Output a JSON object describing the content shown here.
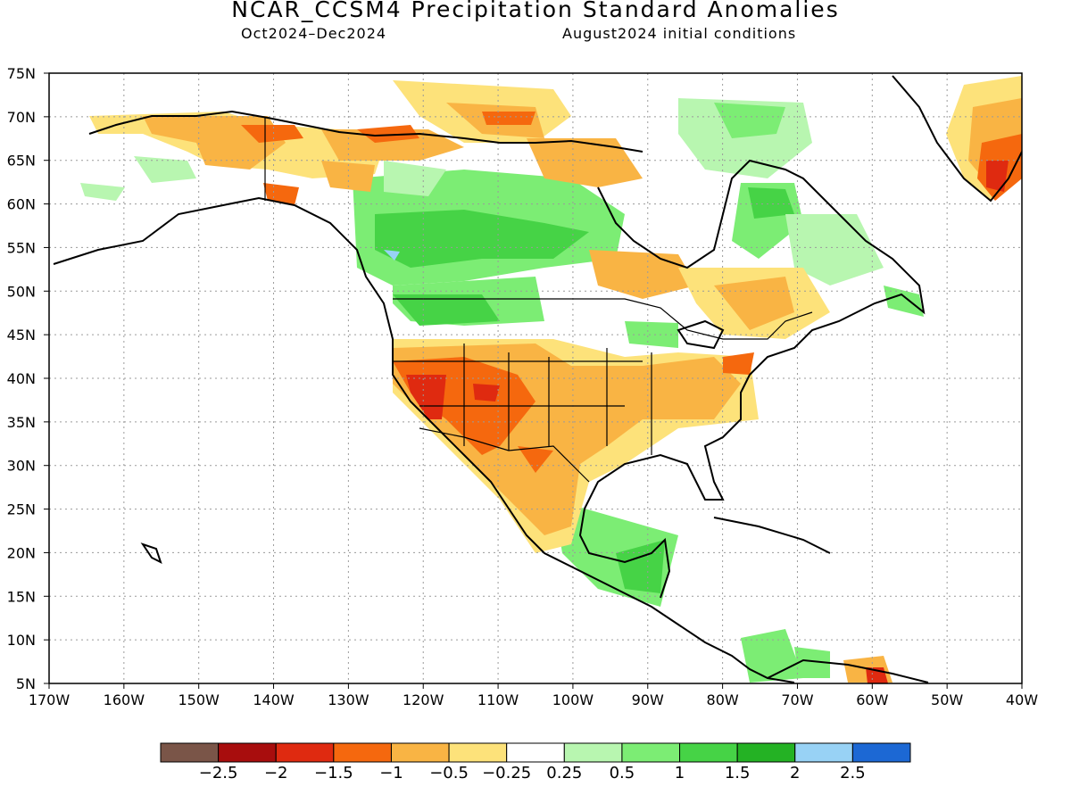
{
  "title": "NCAR_CCSM4 Precipitation Standard Anomalies",
  "period": "Oct2024–Dec2024",
  "initial_conditions": "August2024 initial conditions",
  "lat_labels": [
    "75N",
    "70N",
    "65N",
    "60N",
    "55N",
    "50N",
    "45N",
    "40N",
    "35N",
    "30N",
    "25N",
    "20N",
    "15N",
    "10N",
    "5N"
  ],
  "lon_labels": [
    "170W",
    "160W",
    "150W",
    "140W",
    "130W",
    "120W",
    "110W",
    "100W",
    "90W",
    "80W",
    "70W",
    "60W",
    "50W",
    "40W"
  ],
  "colorbar": {
    "colors": [
      "#7a5548",
      "#a80d0d",
      "#df2a10",
      "#f5680e",
      "#f9b444",
      "#fde27a",
      "#ffffff",
      "#b8f6b0",
      "#7ced74",
      "#46d346",
      "#24b224",
      "#98d2f5",
      "#1c68d4"
    ],
    "labels": [
      "−2.5",
      "−2",
      "−1.5",
      "−1",
      "−0.5",
      "−0.25",
      "0.25",
      "0.5",
      "1",
      "1.5",
      "2",
      "2.5"
    ]
  }
}
